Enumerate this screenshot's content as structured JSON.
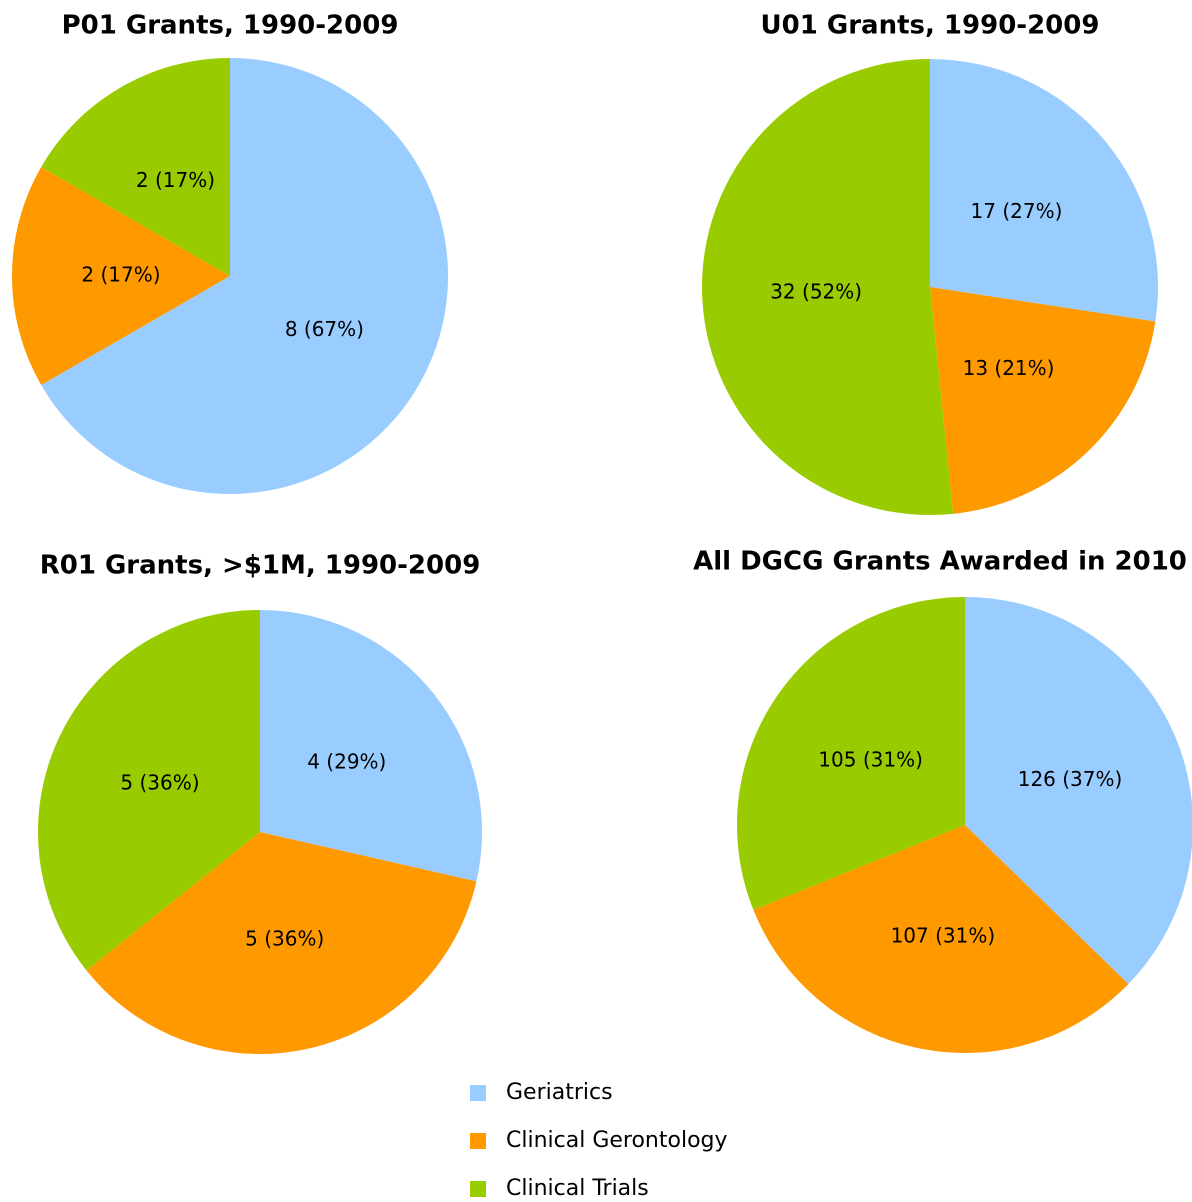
{
  "legend": {
    "categories": [
      "Geriatrics",
      "Clinical Gerontology",
      "Clinical Trials"
    ],
    "colors": [
      "#99ccff",
      "#ff9900",
      "#99cc00"
    ]
  },
  "chart_data": [
    {
      "type": "pie",
      "title": "P01 Grants, 1990-2009",
      "values": [
        8,
        2,
        2
      ],
      "value_labels": [
        "8 (67%)",
        "2 (17%)",
        "2 (17%)"
      ]
    },
    {
      "type": "pie",
      "title": "U01 Grants, 1990-2009",
      "values": [
        17,
        13,
        32
      ],
      "value_labels": [
        "17 (27%)",
        "13 (21%)",
        "32 (52%)"
      ]
    },
    {
      "type": "pie",
      "title": "R01 Grants, >$1M, 1990-2009",
      "values": [
        4,
        5,
        5
      ],
      "value_labels": [
        "4 (29%)",
        "5 (36%)",
        "5 (36%)"
      ]
    },
    {
      "type": "pie",
      "title": "All DGCG Grants Awarded in 2010",
      "values": [
        126,
        107,
        105
      ],
      "value_labels": [
        "126 (37%)",
        "107 (31%)",
        "105 (31%)"
      ]
    }
  ]
}
